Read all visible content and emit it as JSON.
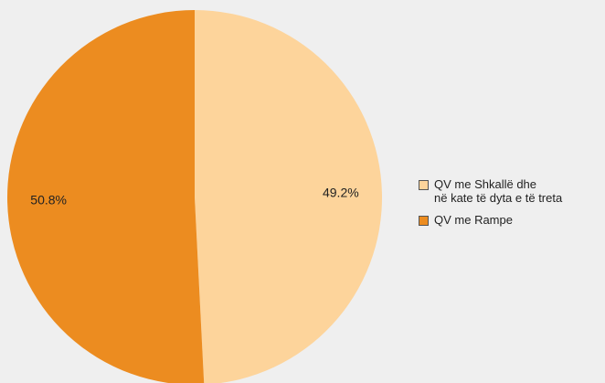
{
  "chart_data": {
    "type": "pie",
    "series": [
      {
        "name": "QV me Shkallë dhe\nnë kate të dyta e të treta",
        "color": "#fdd49b",
        "values": [
          49.2
        ],
        "value_labels": [
          "49.2%"
        ]
      },
      {
        "name": "QV me Rampe",
        "color": "#ec8c20",
        "values": [
          50.8
        ],
        "value_labels": [
          "50.8%"
        ]
      }
    ]
  }
}
